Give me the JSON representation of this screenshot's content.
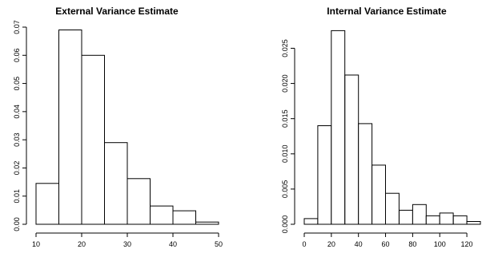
{
  "chart_data": [
    {
      "type": "bar",
      "title": "External Variance Estimate",
      "xlabel": "",
      "ylabel": "",
      "bins": [
        [
          10,
          15
        ],
        [
          15,
          20
        ],
        [
          20,
          25
        ],
        [
          25,
          30
        ],
        [
          30,
          35
        ],
        [
          35,
          40
        ],
        [
          40,
          45
        ],
        [
          45,
          50
        ]
      ],
      "values": [
        0.0145,
        0.069,
        0.06,
        0.029,
        0.0162,
        0.0065,
        0.0048,
        0.0008
      ],
      "xlim": [
        10,
        50
      ],
      "ylim": [
        0,
        0.07
      ],
      "x_ticks": [
        10,
        20,
        30,
        40,
        50
      ],
      "y_ticks": [
        0.0,
        0.01,
        0.02,
        0.03,
        0.04,
        0.05,
        0.06,
        0.07
      ],
      "x_tick_labels": [
        "10",
        "20",
        "30",
        "40",
        "50"
      ],
      "y_tick_labels": [
        "0.00",
        "0.01",
        "0.02",
        "0.03",
        "0.04",
        "0.05",
        "0.06",
        "0.07"
      ],
      "grid": false
    },
    {
      "type": "bar",
      "title": "Internal Variance Estimate",
      "xlabel": "",
      "ylabel": "",
      "bins": [
        [
          0,
          10
        ],
        [
          10,
          20
        ],
        [
          20,
          30
        ],
        [
          30,
          40
        ],
        [
          40,
          50
        ],
        [
          50,
          60
        ],
        [
          60,
          70
        ],
        [
          70,
          80
        ],
        [
          80,
          90
        ],
        [
          90,
          100
        ],
        [
          100,
          110
        ],
        [
          110,
          120
        ],
        [
          120,
          130
        ]
      ],
      "values": [
        0.0008,
        0.014,
        0.0275,
        0.0212,
        0.0143,
        0.0084,
        0.0044,
        0.002,
        0.0028,
        0.0012,
        0.0016,
        0.0012,
        0.0004
      ],
      "xlim": [
        0,
        130
      ],
      "ylim": [
        0,
        0.028
      ],
      "x_ticks": [
        0,
        20,
        40,
        60,
        80,
        100,
        120
      ],
      "y_ticks": [
        0.0,
        0.005,
        0.01,
        0.015,
        0.02,
        0.025
      ],
      "x_tick_labels": [
        "0",
        "20",
        "40",
        "60",
        "80",
        "100",
        "120"
      ],
      "y_tick_labels": [
        "0.000",
        "0.005",
        "0.010",
        "0.015",
        "0.020",
        "0.025"
      ],
      "grid": false
    }
  ]
}
